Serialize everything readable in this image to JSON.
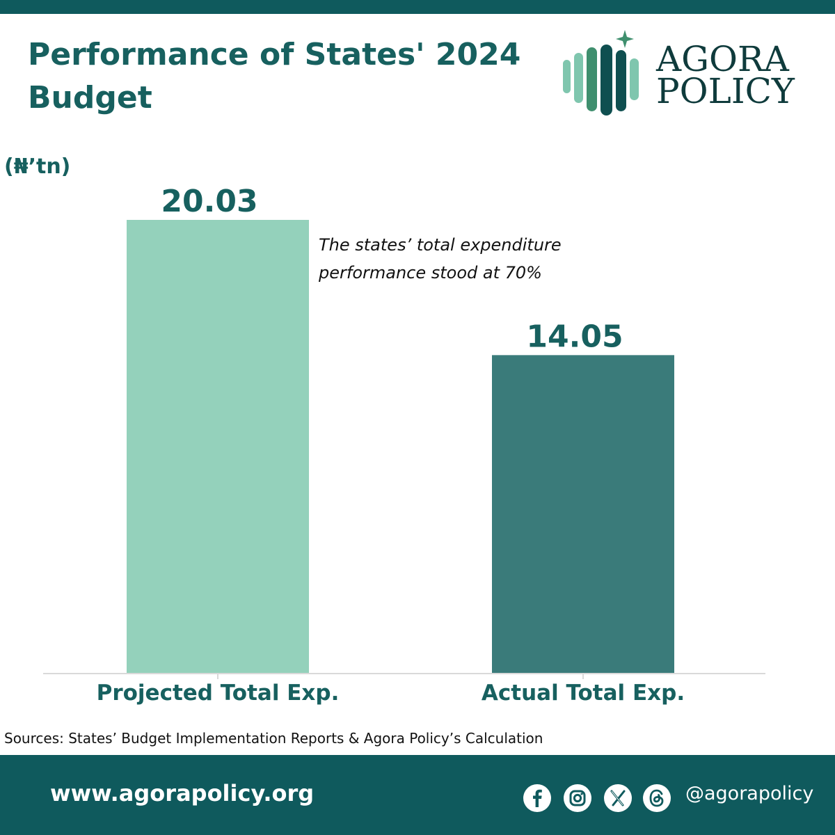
{
  "header": {
    "title_line1": "Performance of States' 2024",
    "title_line2": "Budget"
  },
  "logo": {
    "line1": "AGORA",
    "line2": "POLICY",
    "icon": "agora-policy-logo"
  },
  "colors": {
    "band": "#0f5a5d",
    "title": "#17605f",
    "bar_projected": "#94d1bb",
    "bar_actual": "#3a7b7a"
  },
  "chart_data": {
    "type": "bar",
    "unit_label": "(₦’tn)",
    "categories": [
      "Projected Total Exp.",
      "Actual Total Exp."
    ],
    "values": [
      20.03,
      14.05
    ],
    "value_labels": [
      "20.03",
      "14.05"
    ],
    "annotation": [
      "The states’ total expenditure",
      "performance stood at 70%"
    ],
    "title": "Performance of States' 2024 Budget",
    "xlabel": "",
    "ylabel": "",
    "ylim": [
      0,
      20.03
    ],
    "grid": false,
    "legend": "none"
  },
  "source": "Sources: States’ Budget Implementation Reports & Agora Policy’s Calculation",
  "footer": {
    "website": "www.agorapolicy.org",
    "handle": "@agorapolicy",
    "social_icons": [
      "facebook-icon",
      "instagram-icon",
      "x-icon",
      "threads-icon"
    ]
  }
}
